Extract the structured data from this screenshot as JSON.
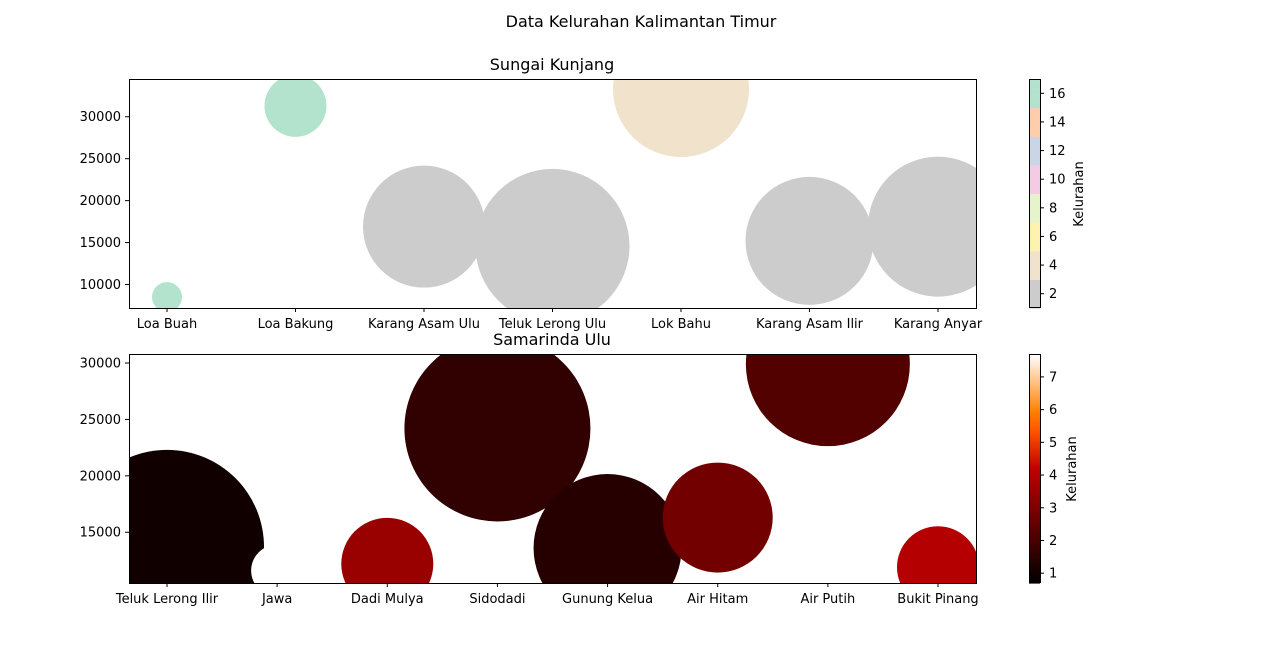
{
  "figure": {
    "suptitle": "Data Kelurahan Kalimantan Timur"
  },
  "chart_data": [
    {
      "type": "scatter",
      "subtype": "bubble",
      "title": "Sungai Kunjang",
      "categories": [
        "Loa Buah",
        "Loa Bakung",
        "Karang Asam Ulu",
        "Teluk Lerong Ulu",
        "Lok Bahu",
        "Karang Asam Ilir",
        "Karang Anyar"
      ],
      "values": [
        8500,
        31300,
        16900,
        14600,
        33300,
        15200,
        16900
      ],
      "color_values": [
        17,
        17,
        1,
        1,
        4,
        1,
        1
      ],
      "ylim": [
        7200,
        34500
      ],
      "yticks": [
        10000,
        15000,
        20000,
        25000,
        30000
      ],
      "colorbar": {
        "label": "Kelurahan",
        "ticks": [
          2,
          4,
          6,
          8,
          10,
          12,
          14,
          16
        ],
        "range": [
          1,
          17
        ],
        "colormap": "Pastel2"
      },
      "xlabel": "",
      "ylabel": ""
    },
    {
      "type": "scatter",
      "subtype": "bubble",
      "title": "Samarinda Ulu",
      "categories": [
        "Teluk Lerong Ilir",
        "Jawa",
        "Dadi Mulya",
        "Sidodadi",
        "Gunung Kelua",
        "Air Hitam",
        "Air Putih",
        "Bukit Pinang"
      ],
      "values": [
        13700,
        11600,
        12200,
        24200,
        13600,
        16300,
        29900,
        11900
      ],
      "color_values": [
        1,
        7.7,
        3.5,
        1.6,
        1.4,
        2.8,
        2.2,
        4
      ],
      "ylim": [
        10500,
        30800
      ],
      "yticks": [
        15000,
        20000,
        25000,
        30000
      ],
      "colorbar": {
        "label": "Kelurahan",
        "ticks": [
          1,
          2,
          3,
          4,
          5,
          6,
          7
        ],
        "range": [
          0.7,
          7.7
        ],
        "colormap": "gist_heat"
      },
      "xlabel": "",
      "ylabel": ""
    }
  ]
}
